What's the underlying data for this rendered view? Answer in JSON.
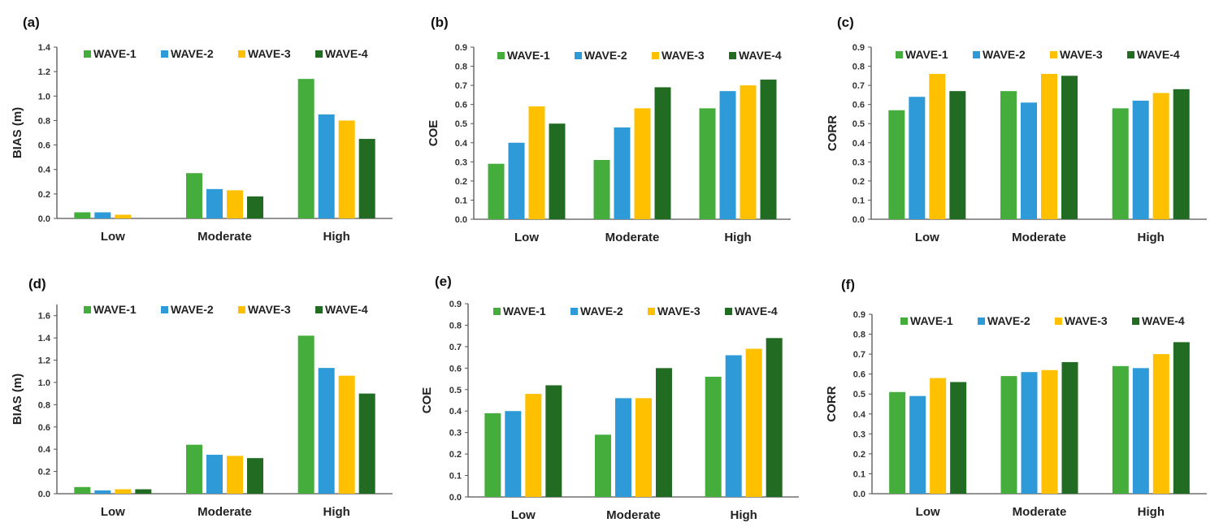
{
  "chart_data": [
    {
      "type": "bar",
      "panel_label": "(a)",
      "ylabel": "BIAS (m)",
      "ylim": [
        0,
        1.4
      ],
      "yticks": [
        "0.0",
        "0.2",
        "0.4",
        "0.6",
        "0.8",
        "1.0",
        "1.2",
        "1.4"
      ],
      "tick_values": [
        0,
        0.2,
        0.4,
        0.6,
        0.8,
        1.0,
        1.2,
        1.4
      ],
      "categories": [
        "Low",
        "Moderate",
        "High"
      ],
      "series": [
        {
          "name": "WAVE-1",
          "values": [
            0.05,
            0.37,
            1.14
          ]
        },
        {
          "name": "WAVE-2",
          "values": [
            0.05,
            0.24,
            0.85
          ]
        },
        {
          "name": "WAVE-3",
          "values": [
            0.03,
            0.23,
            0.8
          ]
        },
        {
          "name": "WAVE-4",
          "values": [
            0,
            0.18,
            0.65
          ]
        }
      ],
      "legend": "top"
    },
    {
      "type": "bar",
      "panel_label": "(b)",
      "ylabel": "COE",
      "ylim": [
        0,
        0.9
      ],
      "yticks": [
        "0.0",
        "0.1",
        "0.2",
        "0.3",
        "0.4",
        "0.5",
        "0.6",
        "0.7",
        "0.8",
        "0.9"
      ],
      "tick_values": [
        0,
        0.1,
        0.2,
        0.3,
        0.4,
        0.5,
        0.6,
        0.7,
        0.8,
        0.9
      ],
      "categories": [
        "Low",
        "Moderate",
        "High"
      ],
      "series": [
        {
          "name": "WAVE-1",
          "values": [
            0.29,
            0.31,
            0.58
          ]
        },
        {
          "name": "WAVE-2",
          "values": [
            0.4,
            0.48,
            0.67
          ]
        },
        {
          "name": "WAVE-3",
          "values": [
            0.59,
            0.58,
            0.7
          ]
        },
        {
          "name": "WAVE-4",
          "values": [
            0.5,
            0.69,
            0.73
          ]
        }
      ],
      "legend": "top"
    },
    {
      "type": "bar",
      "panel_label": "(c)",
      "ylabel": "CORR",
      "ylim": [
        0,
        0.9
      ],
      "yticks": [
        "0.0",
        "0.1",
        "0.2",
        "0.3",
        "0.4",
        "0.5",
        "0.6",
        "0.7",
        "0.8",
        "0.9"
      ],
      "tick_values": [
        0,
        0.1,
        0.2,
        0.3,
        0.4,
        0.5,
        0.6,
        0.7,
        0.8,
        0.9
      ],
      "categories": [
        "Low",
        "Moderate",
        "High"
      ],
      "series": [
        {
          "name": "WAVE-1",
          "values": [
            0.57,
            0.67,
            0.58
          ]
        },
        {
          "name": "WAVE-2",
          "values": [
            0.64,
            0.61,
            0.62
          ]
        },
        {
          "name": "WAVE-3",
          "values": [
            0.76,
            0.76,
            0.66
          ]
        },
        {
          "name": "WAVE-4",
          "values": [
            0.67,
            0.75,
            0.68
          ]
        }
      ],
      "legend": "top"
    },
    {
      "type": "bar",
      "panel_label": "(d)",
      "ylabel": "BIAS (m)",
      "ylim": [
        0,
        1.7
      ],
      "yticks": [
        "0.0",
        "0.2",
        "0.4",
        "0.6",
        "0.8",
        "1.0",
        "1.2",
        "1.4",
        "1.6"
      ],
      "tick_values": [
        0,
        0.2,
        0.4,
        0.6,
        0.8,
        1.0,
        1.2,
        1.4,
        1.6
      ],
      "categories": [
        "Low",
        "Moderate",
        "High"
      ],
      "series": [
        {
          "name": "WAVE-1",
          "values": [
            0.06,
            0.44,
            1.42
          ]
        },
        {
          "name": "WAVE-2",
          "values": [
            0.03,
            0.35,
            1.13
          ]
        },
        {
          "name": "WAVE-3",
          "values": [
            0.04,
            0.34,
            1.06
          ]
        },
        {
          "name": "WAVE-4",
          "values": [
            0.04,
            0.32,
            0.9
          ]
        }
      ],
      "legend": "top"
    },
    {
      "type": "bar",
      "panel_label": "(e)",
      "ylabel": "COE",
      "ylim": [
        0,
        0.9
      ],
      "yticks": [
        "0.0",
        "0.1",
        "0.2",
        "0.3",
        "0.4",
        "0.5",
        "0.6",
        "0.7",
        "0.8",
        "0.9"
      ],
      "tick_values": [
        0,
        0.1,
        0.2,
        0.3,
        0.4,
        0.5,
        0.6,
        0.7,
        0.8,
        0.9
      ],
      "categories": [
        "Low",
        "Moderate",
        "High"
      ],
      "series": [
        {
          "name": "WAVE-1",
          "values": [
            0.39,
            0.29,
            0.56
          ]
        },
        {
          "name": "WAVE-2",
          "values": [
            0.4,
            0.46,
            0.66
          ]
        },
        {
          "name": "WAVE-3",
          "values": [
            0.48,
            0.46,
            0.69
          ]
        },
        {
          "name": "WAVE-4",
          "values": [
            0.52,
            0.6,
            0.74
          ]
        }
      ],
      "legend": "top"
    },
    {
      "type": "bar",
      "panel_label": "(f)",
      "ylabel": "CORR",
      "ylim": [
        0,
        0.9
      ],
      "yticks": [
        "0.0",
        "0.1",
        "0.2",
        "0.3",
        "0.4",
        "0.5",
        "0.6",
        "0.7",
        "0.8",
        "0.9"
      ],
      "tick_values": [
        0,
        0.1,
        0.2,
        0.3,
        0.4,
        0.5,
        0.6,
        0.7,
        0.8,
        0.9
      ],
      "categories": [
        "Low",
        "Moderate",
        "High"
      ],
      "series": [
        {
          "name": "WAVE-1",
          "values": [
            0.51,
            0.59,
            0.64
          ]
        },
        {
          "name": "WAVE-2",
          "values": [
            0.49,
            0.61,
            0.63
          ]
        },
        {
          "name": "WAVE-3",
          "values": [
            0.58,
            0.62,
            0.7
          ]
        },
        {
          "name": "WAVE-4",
          "values": [
            0.56,
            0.66,
            0.76
          ]
        }
      ],
      "legend": "top"
    }
  ],
  "colors": {
    "WAVE-1": "#45ad3c",
    "WAVE-2": "#2e9bd8",
    "WAVE-3": "#ffc000",
    "WAVE-4": "#226b22"
  }
}
